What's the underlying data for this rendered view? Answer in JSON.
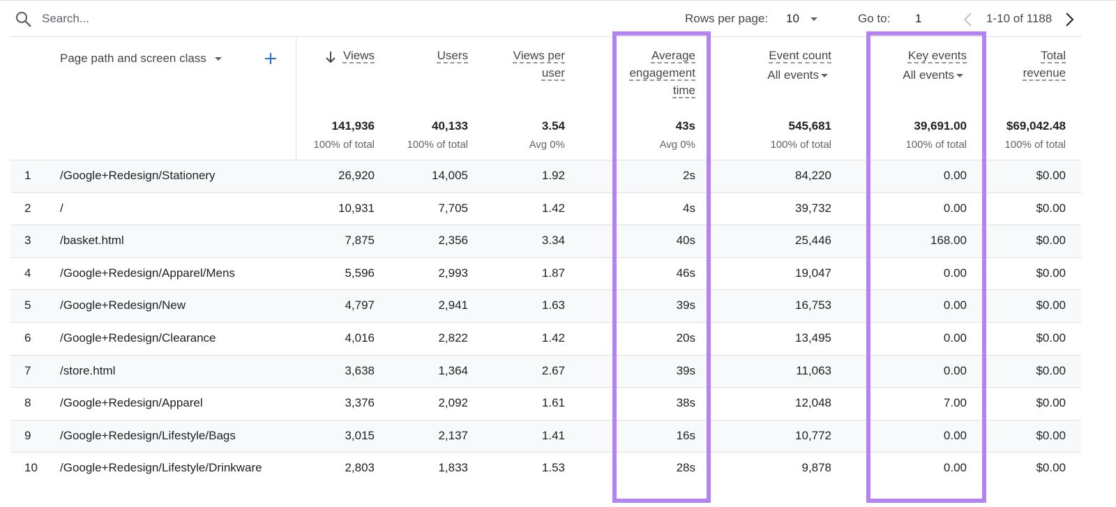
{
  "toolbar": {
    "search_placeholder": "Search...",
    "rows_per_page_label": "Rows per page:",
    "rows_per_page": "10",
    "go_to_label": "Go to:",
    "go_to": "1",
    "range": "1-10 of 1188"
  },
  "table": {
    "dimension_header": "Page path and screen class",
    "columns": [
      {
        "header": "Views"
      },
      {
        "header": "Users"
      },
      {
        "header": "Views per user"
      },
      {
        "header": "Average engagement time"
      },
      {
        "header": "Event count",
        "filter": "All events"
      },
      {
        "header": "Key events",
        "filter": "All events"
      },
      {
        "header": "Total revenue"
      }
    ],
    "totals": [
      {
        "value": "141,936",
        "note": "100% of total"
      },
      {
        "value": "40,133",
        "note": "100% of total"
      },
      {
        "value": "3.54",
        "note": "Avg 0%"
      },
      {
        "value": "43s",
        "note": "Avg 0%"
      },
      {
        "value": "545,681",
        "note": "100% of total"
      },
      {
        "value": "39,691.00",
        "note": "100% of total"
      },
      {
        "value": "$69,042.48",
        "note": "100% of total"
      }
    ],
    "rows": [
      [
        "1",
        "/Google+Redesign/Stationery",
        "26,920",
        "14,005",
        "1.92",
        "2s",
        "84,220",
        "0.00",
        "$0.00"
      ],
      [
        "2",
        "/",
        "10,931",
        "7,705",
        "1.42",
        "4s",
        "39,732",
        "0.00",
        "$0.00"
      ],
      [
        "3",
        "/basket.html",
        "7,875",
        "2,356",
        "3.34",
        "40s",
        "25,446",
        "168.00",
        "$0.00"
      ],
      [
        "4",
        "/Google+Redesign/Apparel/Mens",
        "5,596",
        "2,993",
        "1.87",
        "46s",
        "19,047",
        "0.00",
        "$0.00"
      ],
      [
        "5",
        "/Google+Redesign/New",
        "4,797",
        "2,941",
        "1.63",
        "39s",
        "16,753",
        "0.00",
        "$0.00"
      ],
      [
        "6",
        "/Google+Redesign/Clearance",
        "4,016",
        "2,822",
        "1.42",
        "20s",
        "13,495",
        "0.00",
        "$0.00"
      ],
      [
        "7",
        "/store.html",
        "3,638",
        "1,364",
        "2.67",
        "39s",
        "11,063",
        "0.00",
        "$0.00"
      ],
      [
        "8",
        "/Google+Redesign/Apparel",
        "3,376",
        "2,092",
        "1.61",
        "38s",
        "12,048",
        "7.00",
        "$0.00"
      ],
      [
        "9",
        "/Google+Redesign/Lifestyle/Bags",
        "3,015",
        "2,137",
        "1.41",
        "16s",
        "10,772",
        "0.00",
        "$0.00"
      ],
      [
        "10",
        "/Google+Redesign/Lifestyle/Drinkware",
        "2,803",
        "1,833",
        "1.53",
        "28s",
        "9,878",
        "0.00",
        "$0.00"
      ]
    ]
  }
}
